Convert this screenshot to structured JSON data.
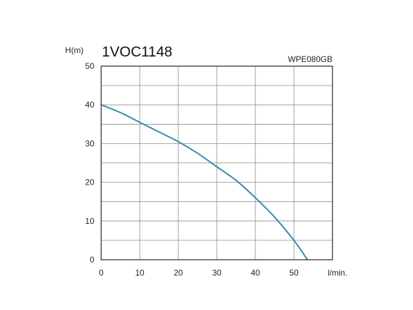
{
  "chart_data": {
    "type": "line",
    "title": "1VOC1148",
    "subtitle": "WPE080GB",
    "xlabel": "l/min.",
    "ylabel": "H(m)",
    "xlim": [
      0,
      60
    ],
    "ylim": [
      0,
      50
    ],
    "x_ticks": [
      0,
      10,
      20,
      30,
      40,
      50
    ],
    "y_ticks": [
      0,
      10,
      20,
      30,
      40,
      50
    ],
    "grid": true,
    "series": [
      {
        "color": "#3a88a8",
        "x": [
          0,
          5,
          10,
          15,
          20,
          25,
          30,
          35,
          40,
          45,
          50,
          53.5
        ],
        "y": [
          40,
          38,
          35.5,
          33,
          30.5,
          27.5,
          24,
          20.5,
          16,
          11,
          5,
          0
        ]
      }
    ]
  }
}
